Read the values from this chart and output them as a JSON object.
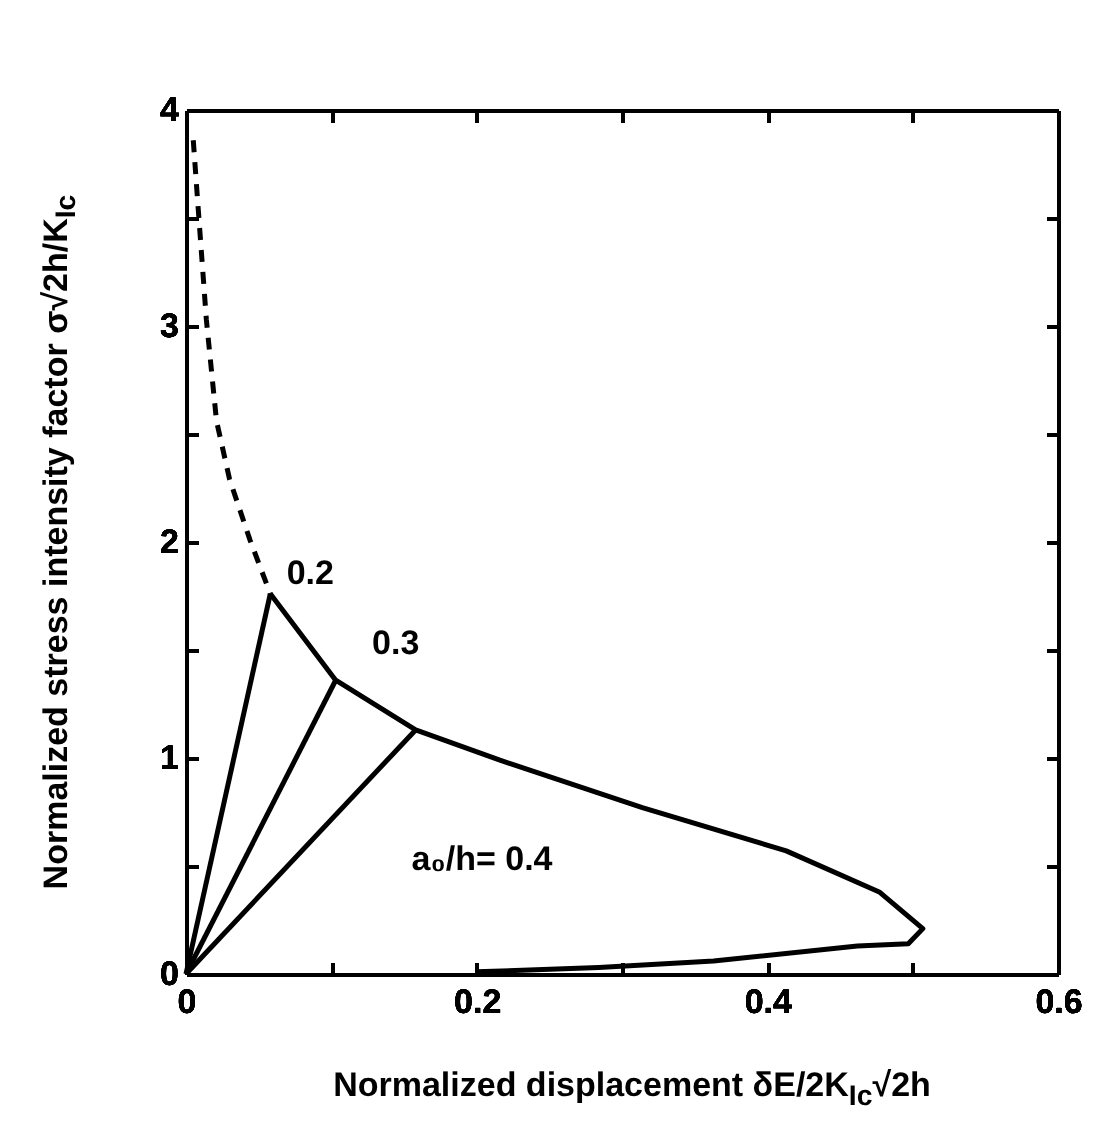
{
  "chart_data": {
    "type": "line",
    "xlabel": "Normalized displacement  δE/2K$_{Ic}$√2h",
    "ylabel": "Normalized stress intensity factor   σ√2h/K$_{Ic}$",
    "series": [
      {
        "color": "#000000",
        "line_style": "dashed",
        "x": [
          0.005,
          0.008,
          0.014,
          0.021,
          0.03,
          0.044,
          0.058
        ],
        "values": [
          3.86,
          3.58,
          3.03,
          2.56,
          2.29,
          2.01,
          1.76
        ]
      },
      {
        "color": "#000000",
        "line_style": "solid",
        "x": [
          0.058,
          0.103,
          0.158,
          0.216,
          0.314,
          0.413,
          0.477,
          0.507,
          0.497,
          0.462,
          0.363,
          0.284,
          0.2
        ],
        "values": [
          1.76,
          1.36,
          1.13,
          0.99,
          0.77,
          0.57,
          0.38,
          0.21,
          0.14,
          0.13,
          0.06,
          0.03,
          0.01
        ]
      },
      {
        "color": "#000000",
        "line_style": "solid",
        "x": [
          0,
          0.058
        ],
        "values": [
          0,
          1.76
        ]
      },
      {
        "color": "#000000",
        "line_style": "solid",
        "x": [
          0,
          0.103
        ],
        "values": [
          0,
          1.36
        ]
      },
      {
        "color": "#000000",
        "line_style": "solid",
        "x": [
          0,
          0.158
        ],
        "values": [
          0,
          1.13
        ]
      }
    ],
    "annotations": [
      {
        "text": "0.2",
        "x": 0.058,
        "y": 1.76
      },
      {
        "text": "0.3",
        "x": 0.103,
        "y": 1.36
      },
      "a₀/h=  0.4"
    ],
    "xlim": [
      0,
      0.6
    ],
    "xticks": [
      0,
      {
        "value": 0.1,
        "label": null
      },
      0.2,
      {
        "value": 0.3,
        "label": null
      },
      0.4,
      {
        "value": 0.5,
        "label": null
      },
      0.6
    ],
    "ylim": [
      0,
      4
    ],
    "yticks": [
      0,
      {
        "value": 0.5,
        "label": null
      },
      1,
      {
        "value": 1.5,
        "label": null
      },
      2,
      {
        "value": 2.5,
        "label": null
      },
      3,
      {
        "value": 3.5,
        "label": null
      },
      4
    ],
    "grid": false,
    "marker": "none"
  }
}
